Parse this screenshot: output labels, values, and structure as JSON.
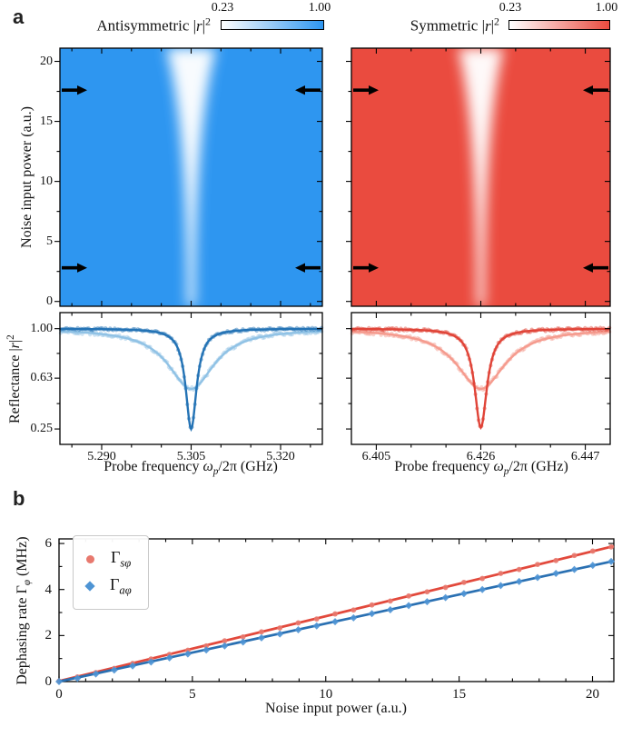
{
  "panel_a": {
    "label": "a",
    "left_title": "Antisymmetric",
    "right_title": "Symmetric",
    "math": {
      "abs_bar": "|",
      "r": "r",
      "sq": "2"
    },
    "colorbar_min": "0.23",
    "colorbar_max": "1.00",
    "ylabel": "Noise input power (a.u.)",
    "reflectance_label": "Reflectance ",
    "xlabel": {
      "prefix": "Probe frequency ",
      "omega": "ω",
      "sub": "p",
      "suffix": "/2π (GHz)"
    }
  },
  "panel_b": {
    "label": "b",
    "ylabel": {
      "prefix": "Dephasing rate ",
      "gamma": "Γ",
      "sub": "φ",
      "suffix": " (MHz)"
    },
    "xlabel": "Noise input power (a.u.)",
    "legend": [
      {
        "gamma": "Γ",
        "sub": "sφ",
        "marker": "circle",
        "color": "#E8796E"
      },
      {
        "gamma": "Γ",
        "sub": "aφ",
        "marker": "diamond",
        "color": "#4E94D4"
      }
    ]
  },
  "chart_data": [
    {
      "id": "heatmap-antisymmetric",
      "type": "heatmap",
      "title": "Antisymmetric |r|²",
      "colormap": {
        "low": "#ffffff",
        "high": "#2E96F0",
        "vmin": 0.23,
        "vmax": 1.0
      },
      "xlim": [
        5.283,
        5.327
      ],
      "xminor": 0.005,
      "xticks": [
        5.29,
        5.305,
        5.32
      ],
      "ylim": [
        -0.4,
        21.1
      ],
      "yminor": 2.5,
      "yticks": [
        0,
        5,
        10,
        15,
        20
      ],
      "ytick_labels": [
        "0",
        "5",
        "10",
        "15",
        "20"
      ],
      "ylabel": "Noise input power (a.u.)",
      "resonance_ghz": 5.305,
      "band": {
        "center_ghz": 5.305,
        "bottom_halfwidth_frac": 0.014,
        "top_halfwidth_frac": 0.095
      },
      "arrow_cut_powers": [
        2.8,
        17.6
      ],
      "show_ylabels": true
    },
    {
      "id": "heatmap-symmetric",
      "type": "heatmap",
      "title": "Symmetric |r|²",
      "colormap": {
        "low": "#ffffff",
        "high": "#EA4B3F",
        "vmin": 0.23,
        "vmax": 1.0
      },
      "xlim": [
        6.4,
        6.452
      ],
      "xminor": 0.007,
      "xticks": [
        6.405,
        6.426,
        6.447
      ],
      "ylim": [
        -0.4,
        21.1
      ],
      "yminor": 2.5,
      "yticks": [
        0,
        5,
        10,
        15,
        20
      ],
      "ytick_labels": [],
      "resonance_ghz": 6.426,
      "band": {
        "center_ghz": 6.426,
        "bottom_halfwidth_frac": 0.014,
        "top_halfwidth_frac": 0.088
      },
      "arrow_cut_powers": [
        2.8,
        17.6
      ],
      "show_ylabels": false
    },
    {
      "id": "spectra-antisymmetric",
      "type": "line",
      "ylabel": "Reflectance |r|²",
      "xlabel": "Probe frequency ωp/2π (GHz)",
      "xlim": [
        5.283,
        5.327
      ],
      "xminor": 0.005,
      "xticks": [
        5.29,
        5.305,
        5.32
      ],
      "xtick_labels": [
        "5.290",
        "5.305",
        "5.320"
      ],
      "ylim": [
        0.135,
        1.12
      ],
      "yticks": [
        1.0,
        0.63,
        0.25
      ],
      "ytick_labels": [
        "1.00",
        "0.63",
        "0.25"
      ],
      "yminors": [
        0.815,
        0.44
      ],
      "show_ylabels": true,
      "curves": [
        {
          "name": "high-noise broadened dip",
          "color": "#90C2E5",
          "center": 5.305,
          "hwhm": 0.0047,
          "depth": 0.45,
          "scatter": 0.013
        },
        {
          "name": "low-noise narrow dip",
          "color": "#2473B5",
          "center": 5.305,
          "hwhm": 0.0011,
          "depth": 0.75,
          "scatter": 0.009
        }
      ]
    },
    {
      "id": "spectra-symmetric",
      "type": "line",
      "xlabel": "Probe frequency ωp/2π (GHz)",
      "xlim": [
        6.4,
        6.452
      ],
      "xminor": 0.007,
      "xticks": [
        6.405,
        6.426,
        6.447
      ],
      "xtick_labels": [
        "6.405",
        "6.426",
        "6.447"
      ],
      "ylim": [
        0.135,
        1.12
      ],
      "yticks": [
        1.0,
        0.63,
        0.25
      ],
      "ytick_labels": [],
      "yminors": [
        0.815,
        0.44
      ],
      "show_ylabels": false,
      "curves": [
        {
          "name": "high-noise broadened dip",
          "color": "#F59B8E",
          "center": 6.426,
          "hwhm": 0.0059,
          "depth": 0.45,
          "scatter": 0.013
        },
        {
          "name": "low-noise narrow dip",
          "color": "#E04438",
          "center": 6.426,
          "hwhm": 0.0015,
          "depth": 0.74,
          "scatter": 0.01
        }
      ]
    },
    {
      "id": "dephasing",
      "type": "scatter-line",
      "xlabel": "Noise input power (a.u.)",
      "ylabel": "Dephasing rate Γφ (MHz)",
      "xlim": [
        0,
        20.8
      ],
      "xminor": 1,
      "xticks": [
        0,
        5,
        10,
        15,
        20
      ],
      "xtick_labels": [
        "0",
        "5",
        "10",
        "15",
        "20"
      ],
      "ylim": [
        0,
        6.2
      ],
      "yminor": 1,
      "yticks": [
        0,
        2,
        4,
        6
      ],
      "ytick_labels": [
        "0",
        "2",
        "4",
        "6"
      ],
      "series": [
        {
          "name": "Γsφ",
          "marker": "circle",
          "marker_color": "#E8796E",
          "line_color": "#E2493C",
          "fit": {
            "slope": 0.282,
            "intercept": 0.02
          },
          "x": [
            0,
            0.69,
            1.38,
            2.07,
            2.76,
            3.45,
            4.14,
            4.83,
            5.52,
            6.21,
            6.9,
            7.59,
            8.28,
            8.97,
            9.66,
            10.35,
            11.04,
            11.73,
            12.42,
            13.11,
            13.8,
            14.49,
            15.18,
            15.87,
            16.56,
            17.25,
            17.94,
            18.63,
            19.32,
            20.01,
            20.7
          ],
          "y": [
            0.02,
            0.2,
            0.39,
            0.57,
            0.79,
            0.98,
            1.18,
            1.36,
            1.55,
            1.77,
            1.94,
            2.16,
            2.33,
            2.55,
            2.72,
            2.94,
            3.11,
            3.33,
            3.5,
            3.72,
            3.9,
            4.09,
            4.31,
            4.48,
            4.7,
            4.87,
            5.09,
            5.26,
            5.48,
            5.67,
            5.85
          ]
        },
        {
          "name": "Γaφ",
          "marker": "diamond",
          "marker_color": "#4E94D4",
          "line_color": "#2A70B2",
          "fit": {
            "slope": 0.2525,
            "intercept": -0.01
          },
          "x": [
            0,
            0.69,
            1.38,
            2.07,
            2.76,
            3.45,
            4.14,
            4.83,
            5.52,
            6.21,
            6.9,
            7.59,
            8.28,
            8.97,
            9.66,
            10.35,
            11.04,
            11.73,
            12.42,
            13.11,
            13.8,
            14.49,
            15.18,
            15.87,
            16.56,
            17.25,
            17.94,
            18.63,
            19.32,
            20.01,
            20.7
          ],
          "y": [
            0.0,
            0.14,
            0.33,
            0.5,
            0.68,
            0.85,
            1.03,
            1.2,
            1.37,
            1.55,
            1.72,
            1.9,
            2.07,
            2.25,
            2.42,
            2.6,
            2.77,
            2.95,
            3.12,
            3.3,
            3.47,
            3.65,
            3.82,
            4.0,
            4.17,
            4.35,
            4.52,
            4.7,
            4.87,
            5.05,
            5.22
          ]
        }
      ]
    }
  ]
}
